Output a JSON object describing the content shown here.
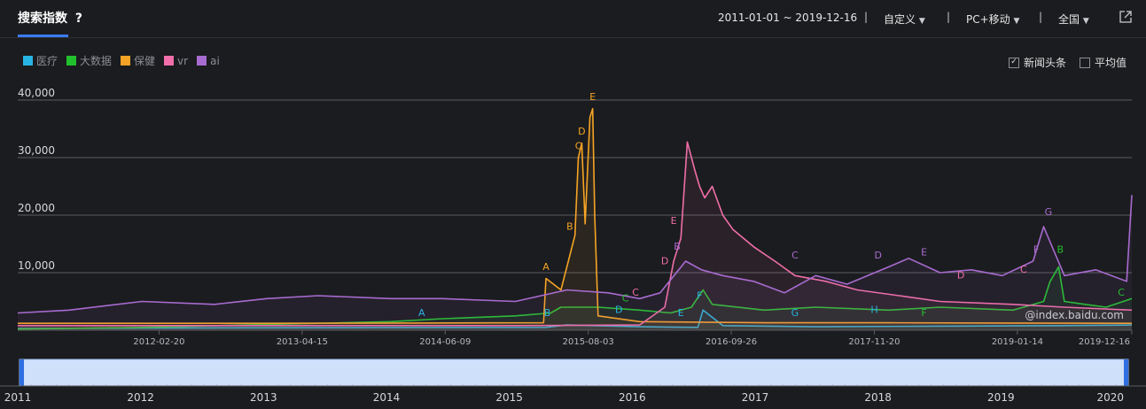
{
  "header": {
    "title": "搜索指数",
    "help": "?",
    "date_range": "2011-01-01 ~ 2019-12-16",
    "custom": "自定义",
    "device": "PC+移动",
    "region": "全国"
  },
  "options": {
    "news": "新闻头条",
    "news_checked": true,
    "average": "平均值",
    "average_checked": false
  },
  "watermark": "@index.baidu.com",
  "chart_data": {
    "type": "line",
    "ylim": [
      0,
      40000
    ],
    "yticks": [
      "40,000",
      "30,000",
      "20,000",
      "10,000"
    ],
    "ytick_values": [
      40000,
      30000,
      20000,
      10000
    ],
    "x_range": [
      "2011-01-01",
      "2019-12-16"
    ],
    "xticks": [
      "2012-02-20",
      "2013-04-15",
      "2014-06-09",
      "2015-08-03",
      "2016-09-26",
      "2017-11-20",
      "2019-01-14",
      "2019-12-16"
    ],
    "navigator_labels": [
      "2011",
      "2012",
      "2013",
      "2014",
      "2015",
      "2016",
      "2017",
      "2018",
      "2019",
      "2020"
    ],
    "grid": true,
    "series": [
      {
        "name": "医疗",
        "color": "#27b4e4",
        "x": [
          "2011-01-01",
          "2012-06-01",
          "2014-01-01",
          "2015-04-01",
          "2015-06-01",
          "2016-01-01",
          "2016-06-20",
          "2016-07-05",
          "2016-09-01",
          "2017-06-01",
          "2018-06-01",
          "2019-06-01",
          "2019-12-16"
        ],
        "y": [
          300,
          400,
          450,
          500,
          900,
          600,
          500,
          3500,
          800,
          600,
          700,
          800,
          900
        ]
      },
      {
        "name": "大数据",
        "color": "#23c02e",
        "x": [
          "2011-01-01",
          "2012-01-01",
          "2013-01-01",
          "2014-01-01",
          "2014-06-01",
          "2015-01-01",
          "2015-04-15",
          "2015-05-15",
          "2015-09-01",
          "2016-01-01",
          "2016-04-01",
          "2016-06-01",
          "2016-07-05",
          "2016-08-01",
          "2017-01-01",
          "2017-06-01",
          "2018-01-01",
          "2018-06-01",
          "2019-01-01",
          "2019-04-01",
          "2019-04-20",
          "2019-05-15",
          "2019-06-01",
          "2019-08-01",
          "2019-10-01",
          "2019-12-16"
        ],
        "y": [
          200,
          500,
          1000,
          1500,
          2000,
          2500,
          3000,
          4000,
          4000,
          3500,
          3000,
          4000,
          7000,
          4500,
          3500,
          4000,
          3500,
          4000,
          3500,
          5000,
          8500,
          11000,
          5000,
          4500,
          4000,
          5500
        ]
      },
      {
        "name": "保健",
        "color": "#f6a425",
        "x": [
          "2011-01-01",
          "2013-01-01",
          "2015-03-25",
          "2015-04-01",
          "2015-05-15",
          "2015-06-10",
          "2015-06-25",
          "2015-07-05",
          "2015-07-15",
          "2015-07-25",
          "2015-08-08",
          "2015-08-16",
          "2015-08-22",
          "2015-09-01",
          "2016-01-01",
          "2017-01-01",
          "2018-01-01",
          "2019-12-16"
        ],
        "y": [
          1200,
          1200,
          1300,
          9000,
          7000,
          13000,
          16500,
          30000,
          32500,
          18500,
          37000,
          38500,
          20000,
          2500,
          1500,
          1300,
          1300,
          1200
        ]
      },
      {
        "name": "vr",
        "color": "#f06ea9",
        "x": [
          "2011-01-01",
          "2013-01-01",
          "2015-01-01",
          "2016-01-01",
          "2016-03-15",
          "2016-04-10",
          "2016-05-01",
          "2016-05-20",
          "2016-06-10",
          "2016-06-25",
          "2016-07-10",
          "2016-08-01",
          "2016-09-01",
          "2016-10-01",
          "2016-12-01",
          "2017-02-01",
          "2017-04-01",
          "2017-07-01",
          "2017-10-01",
          "2018-02-01",
          "2018-06-01",
          "2019-01-01",
          "2019-06-01",
          "2019-12-16"
        ],
        "y": [
          800,
          800,
          800,
          900,
          4000,
          12000,
          16000,
          32700,
          28000,
          25000,
          23000,
          25000,
          20000,
          17500,
          14500,
          12000,
          9500,
          8500,
          7000,
          6000,
          5000,
          4500,
          4000,
          3500
        ]
      },
      {
        "name": "ai",
        "color": "#a86bd0",
        "x": [
          "2011-01-01",
          "2011-06-01",
          "2012-01-01",
          "2012-08-01",
          "2013-01-01",
          "2013-06-01",
          "2014-01-01",
          "2014-06-01",
          "2015-01-01",
          "2015-06-01",
          "2015-10-01",
          "2016-01-01",
          "2016-03-01",
          "2016-05-15",
          "2016-07-01",
          "2016-09-01",
          "2016-12-01",
          "2017-03-01",
          "2017-06-01",
          "2017-09-01",
          "2018-01-01",
          "2018-03-01",
          "2018-06-01",
          "2018-09-01",
          "2018-12-01",
          "2019-03-01",
          "2019-04-01",
          "2019-06-01",
          "2019-09-01",
          "2019-12-01",
          "2019-12-16"
        ],
        "y": [
          3000,
          3500,
          5000,
          4500,
          5500,
          6000,
          5500,
          5500,
          5000,
          7000,
          6500,
          5500,
          6500,
          12000,
          10500,
          9500,
          8500,
          6500,
          9500,
          8000,
          11000,
          12500,
          10000,
          10500,
          9500,
          12000,
          18000,
          9500,
          10500,
          8500,
          23500
        ]
      }
    ],
    "annotations": [
      {
        "label": "A",
        "series": "保健",
        "x": "2015-04-01",
        "y": 10500
      },
      {
        "label": "B",
        "series": "保健",
        "x": "2015-06-10",
        "y": 17500
      },
      {
        "label": "C",
        "series": "保健",
        "x": "2015-07-05",
        "y": 31500
      },
      {
        "label": "D",
        "series": "保健",
        "x": "2015-07-15",
        "y": 34000
      },
      {
        "label": "E",
        "series": "保健",
        "x": "2015-08-16",
        "y": 40000
      },
      {
        "label": "D",
        "series": "vr",
        "x": "2016-03-15",
        "y": 11500
      },
      {
        "label": "E",
        "series": "vr",
        "x": "2016-04-10",
        "y": 18500
      },
      {
        "label": "B",
        "series": "ai",
        "x": "2016-04-20",
        "y": 14000
      },
      {
        "label": "C",
        "series": "ai",
        "x": "2017-04-01",
        "y": 12500
      },
      {
        "label": "D",
        "series": "ai",
        "x": "2017-12-01",
        "y": 12500
      },
      {
        "label": "E",
        "series": "ai",
        "x": "2018-04-15",
        "y": 13000
      },
      {
        "label": "F",
        "series": "ai",
        "x": "2019-03-10",
        "y": 13500
      },
      {
        "label": "G",
        "series": "ai",
        "x": "2019-04-15",
        "y": 20000
      },
      {
        "label": "B",
        "series": "大数据",
        "x": "2019-05-20",
        "y": 13500
      },
      {
        "label": "C",
        "series": "大数据",
        "x": "2019-11-15",
        "y": 6000
      },
      {
        "label": "C",
        "series": "vr",
        "x": "2019-02-01",
        "y": 10000
      },
      {
        "label": "D",
        "series": "vr",
        "x": "2018-08-01",
        "y": 9000
      },
      {
        "label": "A",
        "series": "医疗",
        "x": "2014-04-01",
        "y": 2500
      },
      {
        "label": "B",
        "series": "医疗",
        "x": "2015-04-05",
        "y": 2500
      },
      {
        "label": "D",
        "series": "医疗",
        "x": "2015-11-01",
        "y": 3000
      },
      {
        "label": "C",
        "series": "大数据",
        "x": "2015-11-20",
        "y": 5000
      },
      {
        "label": "C",
        "series": "vr",
        "x": "2015-12-20",
        "y": 6000
      },
      {
        "label": "E",
        "series": "医疗",
        "x": "2016-05-01",
        "y": 2500
      },
      {
        "label": "F",
        "series": "医疗",
        "x": "2016-06-25",
        "y": 5500
      },
      {
        "label": "G",
        "series": "医疗",
        "x": "2017-04-01",
        "y": 2500
      },
      {
        "label": "H",
        "series": "医疗",
        "x": "2017-11-20",
        "y": 3000
      },
      {
        "label": "F",
        "series": "大数据",
        "x": "2018-04-15",
        "y": 2500
      }
    ]
  }
}
